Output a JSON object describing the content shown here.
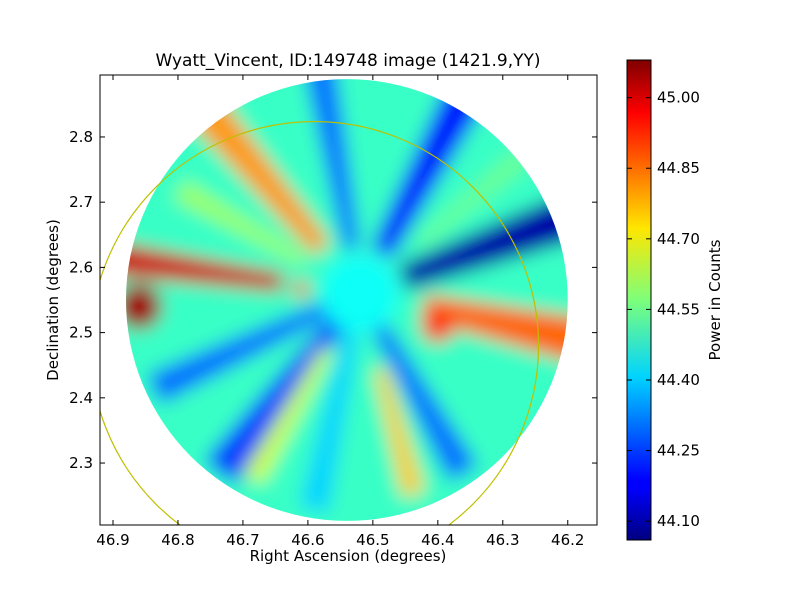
{
  "chart_data": {
    "type": "heatmap",
    "title": "Wyatt_Vincent, ID:149748 image (1421.9,YY)",
    "xlabel": "Right Ascension (degrees)",
    "ylabel": "Declination (degrees)",
    "xlim": [
      46.92,
      46.155
    ],
    "ylim": [
      2.205,
      2.895
    ],
    "x_ticks": [
      46.9,
      46.8,
      46.7,
      46.6,
      46.5,
      46.4,
      46.3,
      46.2
    ],
    "x_tick_labels": [
      "46.9",
      "46.8",
      "46.7",
      "46.6",
      "46.5",
      "46.4",
      "46.3",
      "46.2"
    ],
    "y_ticks": [
      2.3,
      2.4,
      2.5,
      2.6,
      2.7,
      2.8
    ],
    "y_tick_labels": [
      "2.3",
      "2.4",
      "2.5",
      "2.6",
      "2.7",
      "2.8"
    ],
    "colorbar": {
      "label": "Power in Counts",
      "min": 44.06,
      "max": 45.08,
      "colormap": "jet",
      "ticks": [
        44.1,
        44.25,
        44.4,
        44.55,
        44.7,
        44.85,
        45.0
      ],
      "tick_labels": [
        "44.10",
        "44.25",
        "44.40",
        "44.55",
        "44.70",
        "44.85",
        "45.00"
      ]
    },
    "image_center": [
      46.54,
      2.55
    ],
    "image_radius_deg": 0.34,
    "image_background_value": 44.5,
    "features": [
      {
        "type": "spoke",
        "center": [
          46.52,
          2.56
        ],
        "angle_deg": 172,
        "value": 45.0,
        "r_start_deg": 0.12,
        "r_end_deg": 0.42,
        "width_deg": 0.055
      },
      {
        "type": "spoke",
        "center": [
          46.52,
          2.56
        ],
        "angle_deg": -12,
        "value": 44.85,
        "r_start_deg": 0.1,
        "r_end_deg": 0.38,
        "width_deg": 0.075
      },
      {
        "type": "spoke",
        "center": [
          46.52,
          2.56
        ],
        "angle_deg": 130,
        "value": 44.8,
        "r_start_deg": 0.09,
        "r_end_deg": 0.38,
        "width_deg": 0.06
      },
      {
        "type": "spoke",
        "center": [
          46.52,
          2.56
        ],
        "angle_deg": 20,
        "value": 44.1,
        "r_start_deg": 0.07,
        "r_end_deg": 0.4,
        "width_deg": 0.08
      },
      {
        "type": "spoke",
        "center": [
          46.52,
          2.56
        ],
        "angle_deg": 62,
        "value": 44.2,
        "r_start_deg": 0.07,
        "r_end_deg": 0.4,
        "width_deg": 0.07
      },
      {
        "type": "spoke",
        "center": [
          46.52,
          2.56
        ],
        "angle_deg": 100,
        "value": 44.3,
        "r_start_deg": 0.07,
        "r_end_deg": 0.38,
        "width_deg": 0.05
      },
      {
        "type": "spoke",
        "center": [
          46.52,
          2.56
        ],
        "angle_deg": 205,
        "value": 44.3,
        "r_start_deg": 0.05,
        "r_end_deg": 0.35,
        "width_deg": 0.05
      },
      {
        "type": "spoke",
        "center": [
          46.52,
          2.56
        ],
        "angle_deg": 232,
        "value": 44.25,
        "r_start_deg": 0.06,
        "r_end_deg": 0.35,
        "width_deg": 0.06
      },
      {
        "type": "spoke",
        "center": [
          46.52,
          2.56
        ],
        "angle_deg": 258,
        "value": 44.4,
        "r_start_deg": 0.06,
        "r_end_deg": 0.34,
        "width_deg": 0.045
      },
      {
        "type": "spoke",
        "center": [
          46.52,
          2.56
        ],
        "angle_deg": 300,
        "value": 44.3,
        "r_start_deg": 0.06,
        "r_end_deg": 0.32,
        "width_deg": 0.05
      },
      {
        "type": "spoke",
        "center": [
          46.52,
          2.56
        ],
        "angle_deg": 285,
        "value": 44.75,
        "r_start_deg": 0.12,
        "r_end_deg": 0.32,
        "width_deg": 0.035
      },
      {
        "type": "spoke",
        "center": [
          46.52,
          2.56
        ],
        "angle_deg": 240,
        "value": 44.65,
        "r_start_deg": 0.1,
        "r_end_deg": 0.33,
        "width_deg": 0.035
      },
      {
        "type": "spoke",
        "center": [
          46.52,
          2.56
        ],
        "angle_deg": 150,
        "value": 44.6,
        "r_start_deg": 0.1,
        "r_end_deg": 0.32,
        "width_deg": 0.035
      },
      {
        "type": "spoke",
        "center": [
          46.52,
          2.56
        ],
        "angle_deg": 40,
        "value": 44.55,
        "r_start_deg": 0.12,
        "r_end_deg": 0.33,
        "width_deg": 0.035
      },
      {
        "type": "blob",
        "center": [
          46.86,
          2.54
        ],
        "radius_deg": 0.035,
        "value": 45.05
      },
      {
        "type": "blob",
        "center": [
          46.4,
          2.51
        ],
        "radius_deg": 0.025,
        "value": 44.9
      },
      {
        "type": "blob",
        "center": [
          46.61,
          2.567
        ],
        "radius_deg": 0.012,
        "value": 44.95
      },
      {
        "type": "blob",
        "center": [
          46.55,
          2.535
        ],
        "radius_deg": 0.012,
        "value": 44.25
      },
      {
        "type": "blob",
        "center": [
          46.48,
          2.58
        ],
        "radius_deg": 0.012,
        "value": 44.2
      },
      {
        "type": "blob",
        "center": [
          46.52,
          2.56
        ],
        "radius_deg": 0.06,
        "value": 44.45
      }
    ],
    "overlay_circle": {
      "center": [
        46.59,
        2.48
      ],
      "radius_deg": 0.345,
      "color": "#bfbf00"
    }
  }
}
